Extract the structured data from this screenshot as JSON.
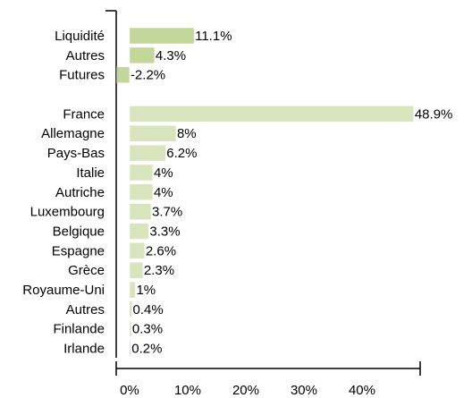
{
  "chart_data": {
    "type": "hbar",
    "categories": [
      "Liquidité",
      "Autres",
      "Futures",
      null,
      "France",
      "Allemagne",
      "Pays-Bas",
      "Italie",
      "Autriche",
      "Luxembourg",
      "Belgique",
      "Espagne",
      "Grèce",
      "Royaume-Uni",
      "Autres",
      "Finlande",
      "Irlande"
    ],
    "values": [
      11.1,
      4.3,
      -2.2,
      null,
      48.9,
      8,
      6.2,
      4,
      4,
      3.7,
      3.3,
      2.6,
      2.3,
      1,
      0.4,
      0.3,
      0.2
    ],
    "value_labels": [
      "11.1%",
      "4.3%",
      "-2.2%",
      null,
      "48.9%",
      "8%",
      "6.2%",
      "4%",
      "4%",
      "3.7%",
      "3.3%",
      "2.6%",
      "2.3%",
      "1%",
      "0.4%",
      "0.3%",
      "0.2%"
    ],
    "colors": [
      "#c4d79b",
      "#c4d79b",
      "#c4d79b",
      null,
      "#d8e4bc",
      "#d8e4bc",
      "#d8e4bc",
      "#d8e4bc",
      "#d8e4bc",
      "#d8e4bc",
      "#d8e4bc",
      "#d8e4bc",
      "#d8e4bc",
      "#d8e4bc",
      "#d8e4bc",
      "#d8e4bc",
      "#d8e4bc"
    ],
    "xlim": [
      -2.3,
      50
    ],
    "xticks": [
      {
        "value": 0,
        "label": "0%"
      },
      {
        "value": 10,
        "label": "10%"
      },
      {
        "value": 20,
        "label": "20%"
      },
      {
        "value": 30,
        "label": "30%"
      },
      {
        "value": 40,
        "label": "40%"
      }
    ]
  }
}
